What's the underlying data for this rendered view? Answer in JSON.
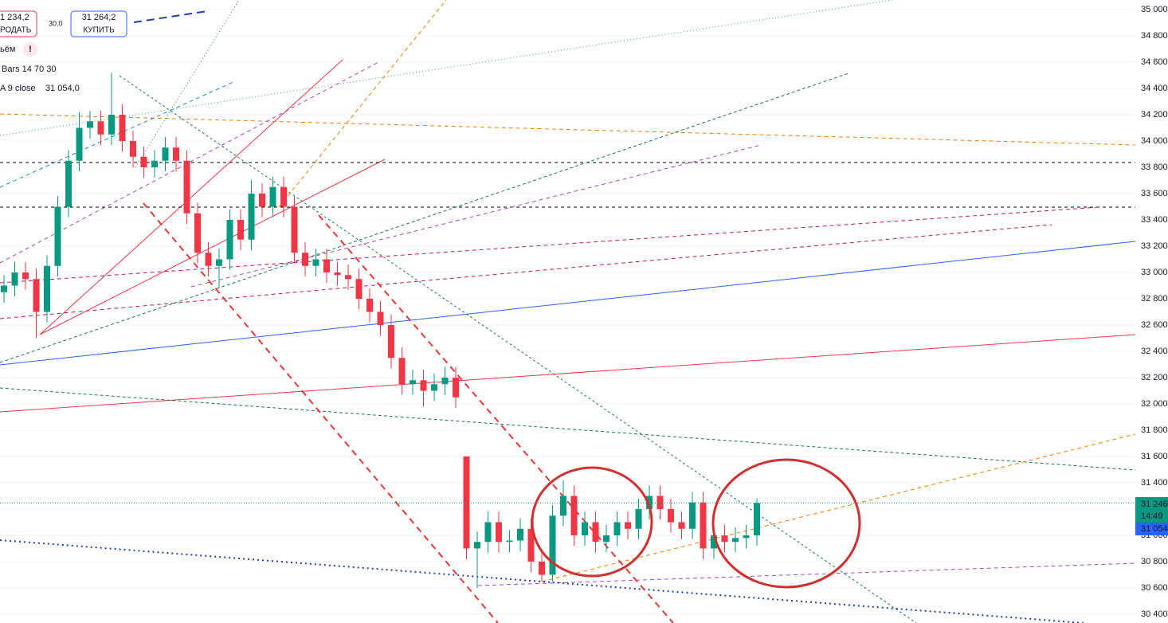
{
  "header": {
    "sell_price": "1 234,2",
    "sell": "РОДАТЬ",
    "spread": "30,0",
    "buy_price": "31 264,2",
    "buy": "КУПИТЬ",
    "volume": "ьём",
    "indicator1": "Bars 14 70 30",
    "indicator2": "A 9 close",
    "indicator2_value": "31 054,0"
  },
  "price_tags": [
    "31 246",
    "14:49",
    "31 054"
  ],
  "chart_data": {
    "type": "candlestick",
    "up_color": "#089981",
    "down_color": "#f23645",
    "ylim": [
      30333,
      35073
    ],
    "yticks": [
      {
        "value": 30400,
        "label": "30 400"
      },
      {
        "value": 30600,
        "label": "30 600"
      },
      {
        "value": 30800,
        "label": "30 800"
      },
      {
        "value": 31000,
        "label": "31 000"
      },
      {
        "value": 31200,
        "label": "31 200"
      },
      {
        "value": 31400,
        "label": "31 400"
      },
      {
        "value": 31600,
        "label": "31 600"
      },
      {
        "value": 31800,
        "label": "31 800"
      },
      {
        "value": 32000,
        "label": "32 000"
      },
      {
        "value": 32200,
        "label": "32 200"
      },
      {
        "value": 32400,
        "label": "32 400"
      },
      {
        "value": 32600,
        "label": "32 600"
      },
      {
        "value": 32800,
        "label": "32 800"
      },
      {
        "value": 33000,
        "label": "33 000"
      },
      {
        "value": 33200,
        "label": "33 200"
      },
      {
        "value": 33400,
        "label": "33 400"
      },
      {
        "value": 33600,
        "label": "33 600"
      },
      {
        "value": 33800,
        "label": "33 800"
      },
      {
        "value": 34000,
        "label": "34 000"
      },
      {
        "value": 34200,
        "label": "34 200"
      },
      {
        "value": 34400,
        "label": "34 400"
      },
      {
        "value": 34600,
        "label": "34 600"
      },
      {
        "value": 34800,
        "label": "34 800"
      },
      {
        "value": 35000,
        "label": "35 000"
      }
    ],
    "open": [
      32850,
      32900,
      33000,
      32950,
      32700,
      33050,
      33500,
      33850,
      34100,
      34150,
      34050,
      34200,
      34000,
      33880,
      33800,
      33850,
      33950,
      33850,
      33450,
      33150,
      33050,
      33100,
      33400,
      33250,
      33600,
      33500,
      33650,
      33500,
      33150,
      33050,
      33100,
      33000,
      32980,
      32950,
      32800,
      32700,
      32600,
      32350,
      32150,
      32180,
      32100,
      32150,
      32200,
      31600,
      30900,
      30950,
      31100,
      30950,
      30960,
      31050,
      30800,
      30700,
      31150,
      31300,
      31000,
      31100,
      30950,
      31000,
      31100,
      31050,
      31200,
      31300,
      31200,
      31100,
      31050,
      31250,
      30900,
      31000,
      30950,
      30980,
      31000
    ],
    "high": [
      32980,
      33080,
      33080,
      33030,
      33130,
      33580,
      33930,
      34220,
      34230,
      34230,
      34520,
      34280,
      34080,
      33960,
      33930,
      34030,
      34030,
      33930,
      33530,
      33230,
      33180,
      33480,
      33480,
      33700,
      33680,
      33730,
      33730,
      33580,
      33230,
      33180,
      33180,
      33080,
      33060,
      33030,
      32880,
      32780,
      32680,
      32430,
      32260,
      32260,
      32230,
      32280,
      32280,
      31600,
      31030,
      31180,
      31180,
      31040,
      31130,
      31130,
      30880,
      31230,
      31420,
      31380,
      31180,
      31180,
      31080,
      31180,
      31180,
      31280,
      31380,
      31380,
      31280,
      31180,
      31330,
      31330,
      31080,
      31080,
      31060,
      31080,
      31280
    ],
    "low": [
      32770,
      32820,
      32870,
      32500,
      32620,
      32970,
      33420,
      33770,
      34020,
      33970,
      33970,
      33920,
      33800,
      33720,
      33720,
      33770,
      33770,
      33370,
      33070,
      32970,
      32880,
      33020,
      33170,
      33170,
      33420,
      33420,
      33420,
      33070,
      32970,
      32970,
      32920,
      32900,
      32870,
      32720,
      32620,
      32520,
      32270,
      32070,
      32070,
      31980,
      32020,
      32070,
      31970,
      30820,
      30600,
      30870,
      30870,
      30870,
      30880,
      30720,
      30650,
      30650,
      31070,
      30920,
      30920,
      30870,
      30870,
      30920,
      30970,
      30970,
      31120,
      31120,
      31020,
      30970,
      30970,
      30820,
      30820,
      30870,
      30870,
      30900,
      30920
    ],
    "close": [
      32900,
      33000,
      32950,
      32700,
      33050,
      33500,
      33850,
      34100,
      34150,
      34050,
      34200,
      34000,
      33880,
      33800,
      33850,
      33950,
      33850,
      33450,
      33150,
      33050,
      33100,
      33400,
      33250,
      33600,
      33500,
      33650,
      33500,
      33150,
      33050,
      33100,
      33000,
      32980,
      32950,
      32800,
      32700,
      32600,
      32350,
      32150,
      32180,
      32100,
      32150,
      32200,
      32050,
      30900,
      30950,
      31100,
      30950,
      30960,
      31050,
      30800,
      30700,
      31150,
      31300,
      31000,
      31100,
      30950,
      31000,
      31100,
      31050,
      31200,
      31300,
      31200,
      31100,
      31050,
      31250,
      30900,
      31000,
      30950,
      30980,
      31000,
      31246
    ]
  }
}
